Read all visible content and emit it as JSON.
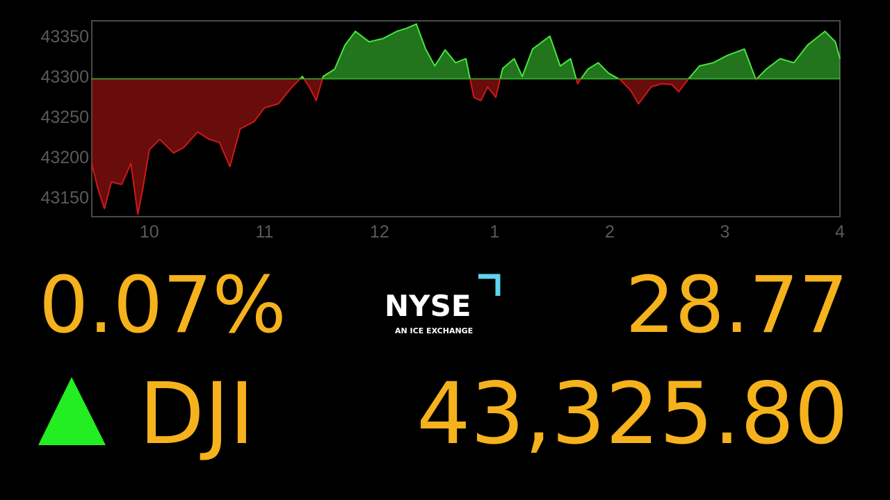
{
  "chart_data": {
    "type": "area",
    "x": [
      9.5,
      9.55,
      9.61,
      9.67,
      9.76,
      9.84,
      9.9,
      9.94,
      10.0,
      10.09,
      10.21,
      10.3,
      10.42,
      10.52,
      10.61,
      10.7,
      10.79,
      10.91,
      11.0,
      11.12,
      11.24,
      11.33,
      11.39,
      11.45,
      11.51,
      11.61,
      11.7,
      11.79,
      11.91,
      12.03,
      12.15,
      12.24,
      12.32,
      12.4,
      12.48,
      12.57,
      12.66,
      12.75,
      12.82,
      12.88,
      12.94,
      13.01,
      13.07,
      13.17,
      13.24,
      13.33,
      13.48,
      13.57,
      13.66,
      13.72,
      13.81,
      13.9,
      13.99,
      14.09,
      14.18,
      14.25,
      14.36,
      14.45,
      14.54,
      14.6,
      14.69,
      14.78,
      14.9,
      15.02,
      15.17,
      15.27,
      15.36,
      15.48,
      15.6,
      15.72,
      15.87,
      15.96,
      16.0
    ],
    "values": [
      43192,
      43162,
      43136,
      43169,
      43166,
      43192,
      43129,
      43158,
      43209,
      43222,
      43205,
      43212,
      43231,
      43222,
      43218,
      43188,
      43235,
      43244,
      43261,
      43266,
      43287,
      43300,
      43287,
      43270,
      43300,
      43309,
      43339,
      43356,
      43343,
      43347,
      43356,
      43360,
      43365,
      43334,
      43313,
      43333,
      43317,
      43322,
      43274,
      43270,
      43287,
      43274,
      43310,
      43322,
      43300,
      43334,
      43350,
      43313,
      43322,
      43291,
      43309,
      43317,
      43304,
      43296,
      43283,
      43266,
      43287,
      43291,
      43290,
      43281,
      43298,
      43313,
      43317,
      43326,
      43334,
      43296,
      43309,
      43322,
      43317,
      43339,
      43356,
      43343,
      43322
    ],
    "reference_line": 43297,
    "up_color": "#44e83a",
    "down_color": "#d01818",
    "xlim": [
      9.5,
      16
    ],
    "xticks": [
      10,
      11,
      12,
      {
        "value": 13,
        "label": "1"
      },
      {
        "value": 14,
        "label": "2"
      },
      {
        "value": 15,
        "label": "3"
      },
      {
        "value": 16,
        "label": "4"
      }
    ],
    "ylim": [
      43126,
      43369
    ],
    "yticks": [
      43150,
      43200,
      43250,
      43300,
      43350
    ]
  },
  "ticker": {
    "percent_change": "0.07%",
    "change": "28.77",
    "symbol": "DJI",
    "price": "43,325.80"
  },
  "logo": {
    "name": "NYSE",
    "tagline": "AN ICE EXCHANGE"
  }
}
